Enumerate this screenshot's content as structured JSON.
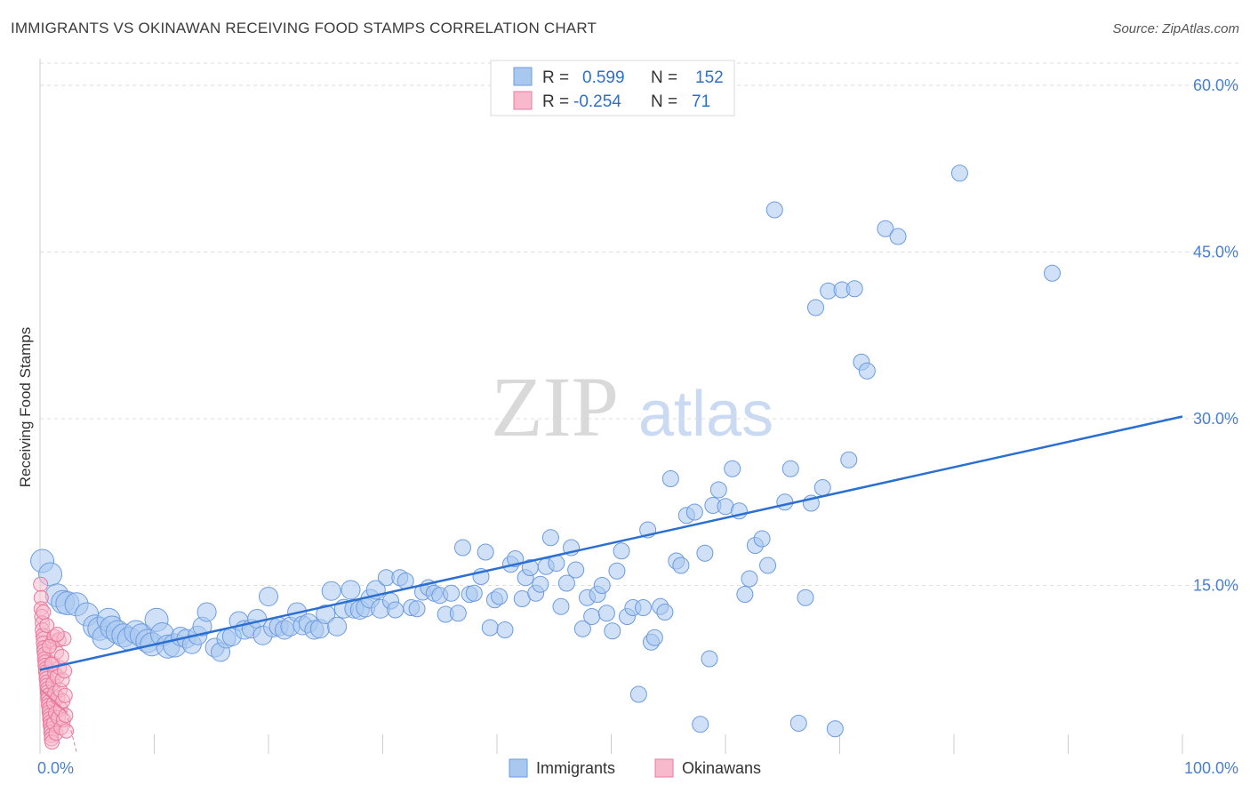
{
  "header": {
    "title": "IMMIGRANTS VS OKINAWAN RECEIVING FOOD STAMPS CORRELATION CHART",
    "source": "Source: ZipAtlas.com"
  },
  "watermark": {
    "zip": "ZIP",
    "atlas": "atlas"
  },
  "legend": {
    "rows": [
      {
        "r_label": "R =",
        "r_value": "0.599",
        "n_label": "N =",
        "n_value": "152",
        "color": "#a9c8f0"
      },
      {
        "r_label": "R =",
        "r_value": "-0.254",
        "n_label": "N =",
        "n_value": "71",
        "color": "#f7b9cc"
      }
    ]
  },
  "chart_data": {
    "type": "scatter",
    "title": "IMMIGRANTS VS OKINAWAN RECEIVING FOOD STAMPS CORRELATION CHART",
    "xlabel": "",
    "ylabel": "Receiving Food Stamps",
    "xlim": [
      0,
      100
    ],
    "ylim": [
      0,
      62
    ],
    "x_tick_labels": [
      "0.0%",
      "100.0%"
    ],
    "y_ticks": [
      15,
      30,
      45,
      60
    ],
    "y_tick_labels": [
      "15.0%",
      "30.0%",
      "45.0%",
      "60.0%"
    ],
    "grid": "horizontal dashed",
    "legend_position": "top-center",
    "colors": {
      "immigrants": "#6c9be0",
      "immigrants_fill": "#a9c8f0",
      "immigrants_line": "#2b6fd1",
      "okinawans": "#e87aa0",
      "okinawans_fill": "#f7b9cc"
    },
    "series": [
      {
        "name": "Immigrants",
        "trend": {
          "x": [
            0,
            100
          ],
          "y": [
            7.4,
            30.2
          ]
        },
        "points": [
          [
            0.2,
            17.2
          ],
          [
            0.9,
            16.0
          ],
          [
            1.5,
            14.1
          ],
          [
            2.0,
            13.5
          ],
          [
            2.4,
            13.4
          ],
          [
            3.2,
            13.3
          ],
          [
            4.1,
            12.4
          ],
          [
            4.8,
            11.3
          ],
          [
            5.2,
            11.1
          ],
          [
            5.6,
            10.3
          ],
          [
            6.0,
            11.9
          ],
          [
            6.3,
            11.2
          ],
          [
            6.8,
            10.8
          ],
          [
            7.3,
            10.5
          ],
          [
            7.8,
            10.2
          ],
          [
            8.4,
            10.8
          ],
          [
            8.9,
            10.5
          ],
          [
            9.4,
            10.0
          ],
          [
            9.8,
            9.7
          ],
          [
            10.2,
            11.9
          ],
          [
            10.7,
            10.6
          ],
          [
            11.2,
            9.5
          ],
          [
            11.8,
            9.6
          ],
          [
            12.3,
            10.4
          ],
          [
            12.8,
            10.2
          ],
          [
            13.3,
            9.7
          ],
          [
            13.8,
            10.5
          ],
          [
            14.2,
            11.3
          ],
          [
            14.6,
            12.6
          ],
          [
            15.3,
            9.4
          ],
          [
            15.8,
            9.0
          ],
          [
            16.3,
            10.2
          ],
          [
            16.8,
            10.4
          ],
          [
            17.4,
            11.8
          ],
          [
            17.9,
            11.0
          ],
          [
            18.5,
            11.1
          ],
          [
            19.0,
            12.0
          ],
          [
            19.5,
            10.5
          ],
          [
            20.0,
            14.0
          ],
          [
            20.4,
            11.2
          ],
          [
            20.9,
            11.3
          ],
          [
            21.4,
            11.0
          ],
          [
            21.9,
            11.3
          ],
          [
            22.5,
            12.6
          ],
          [
            23.0,
            11.4
          ],
          [
            23.5,
            11.6
          ],
          [
            24.0,
            11.0
          ],
          [
            24.5,
            11.1
          ],
          [
            25.0,
            12.4
          ],
          [
            25.5,
            14.5
          ],
          [
            26.0,
            11.3
          ],
          [
            26.6,
            12.9
          ],
          [
            27.2,
            14.6
          ],
          [
            27.5,
            12.9
          ],
          [
            28.0,
            12.8
          ],
          [
            28.5,
            13.0
          ],
          [
            28.9,
            13.8
          ],
          [
            29.4,
            14.6
          ],
          [
            29.8,
            12.9
          ],
          [
            30.3,
            15.7
          ],
          [
            30.7,
            13.6
          ],
          [
            31.1,
            12.8
          ],
          [
            31.5,
            15.7
          ],
          [
            32.0,
            15.4
          ],
          [
            32.5,
            13.0
          ],
          [
            33.0,
            12.9
          ],
          [
            33.5,
            14.4
          ],
          [
            34.0,
            14.8
          ],
          [
            34.5,
            14.3
          ],
          [
            35.0,
            14.1
          ],
          [
            35.5,
            12.4
          ],
          [
            36.0,
            14.3
          ],
          [
            36.6,
            12.5
          ],
          [
            37.0,
            18.4
          ],
          [
            37.6,
            14.2
          ],
          [
            38.0,
            14.3
          ],
          [
            38.6,
            15.8
          ],
          [
            39.0,
            18.0
          ],
          [
            39.4,
            11.2
          ],
          [
            39.8,
            13.7
          ],
          [
            40.2,
            14.0
          ],
          [
            40.7,
            11.0
          ],
          [
            41.2,
            16.9
          ],
          [
            41.6,
            17.4
          ],
          [
            42.2,
            13.8
          ],
          [
            42.5,
            15.7
          ],
          [
            42.9,
            16.6
          ],
          [
            43.4,
            14.3
          ],
          [
            43.8,
            15.1
          ],
          [
            44.3,
            16.7
          ],
          [
            44.7,
            19.3
          ],
          [
            45.2,
            17.0
          ],
          [
            45.6,
            13.1
          ],
          [
            46.1,
            15.2
          ],
          [
            46.5,
            18.4
          ],
          [
            46.9,
            16.4
          ],
          [
            47.5,
            11.1
          ],
          [
            47.9,
            13.9
          ],
          [
            48.3,
            12.2
          ],
          [
            48.8,
            14.2
          ],
          [
            49.2,
            15.0
          ],
          [
            49.6,
            12.5
          ],
          [
            50.1,
            10.9
          ],
          [
            50.5,
            16.3
          ],
          [
            50.9,
            18.1
          ],
          [
            51.4,
            12.2
          ],
          [
            51.9,
            13.0
          ],
          [
            52.4,
            5.2
          ],
          [
            52.8,
            13.0
          ],
          [
            53.2,
            20.0
          ],
          [
            53.5,
            9.9
          ],
          [
            53.8,
            10.3
          ],
          [
            54.3,
            13.1
          ],
          [
            54.7,
            12.6
          ],
          [
            55.2,
            24.6
          ],
          [
            55.7,
            17.2
          ],
          [
            56.1,
            16.8
          ],
          [
            56.6,
            21.3
          ],
          [
            57.3,
            21.6
          ],
          [
            57.8,
            2.5
          ],
          [
            58.2,
            17.9
          ],
          [
            58.6,
            8.4
          ],
          [
            58.9,
            22.2
          ],
          [
            59.4,
            23.6
          ],
          [
            60.0,
            22.1
          ],
          [
            60.6,
            25.5
          ],
          [
            61.2,
            21.7
          ],
          [
            61.7,
            14.2
          ],
          [
            62.1,
            15.6
          ],
          [
            62.6,
            18.6
          ],
          [
            63.2,
            19.2
          ],
          [
            63.7,
            16.8
          ],
          [
            64.3,
            48.8
          ],
          [
            65.2,
            22.5
          ],
          [
            65.7,
            25.5
          ],
          [
            66.4,
            2.6
          ],
          [
            67.0,
            13.9
          ],
          [
            67.5,
            22.4
          ],
          [
            67.9,
            40.0
          ],
          [
            68.5,
            23.8
          ],
          [
            69.0,
            41.5
          ],
          [
            69.6,
            2.1
          ],
          [
            70.2,
            41.6
          ],
          [
            70.8,
            26.3
          ],
          [
            71.3,
            41.7
          ],
          [
            71.9,
            35.1
          ],
          [
            72.4,
            34.3
          ],
          [
            74.0,
            47.1
          ],
          [
            75.1,
            46.4
          ],
          [
            80.5,
            52.1
          ],
          [
            88.6,
            43.1
          ]
        ]
      },
      {
        "name": "Okinawans",
        "trend": {
          "x": [
            0,
            2.3
          ],
          "y": [
            5.7,
            3.6
          ]
        },
        "trend_extended": {
          "x": [
            2.3,
            3.2
          ],
          "y": [
            3.6,
            0
          ]
        },
        "points": [
          [
            0.05,
            15.1
          ],
          [
            0.1,
            13.9
          ],
          [
            0.1,
            12.9
          ],
          [
            0.15,
            12.2
          ],
          [
            0.2,
            11.6
          ],
          [
            0.2,
            11.0
          ],
          [
            0.25,
            10.5
          ],
          [
            0.3,
            10.2
          ],
          [
            0.3,
            9.8
          ],
          [
            0.35,
            9.4
          ],
          [
            0.35,
            9.1
          ],
          [
            0.4,
            8.8
          ],
          [
            0.4,
            8.4
          ],
          [
            0.45,
            8.1
          ],
          [
            0.45,
            7.8
          ],
          [
            0.5,
            7.5
          ],
          [
            0.5,
            7.2
          ],
          [
            0.55,
            6.9
          ],
          [
            0.55,
            6.6
          ],
          [
            0.6,
            6.3
          ],
          [
            0.6,
            6.0
          ],
          [
            0.65,
            5.7
          ],
          [
            0.65,
            5.4
          ],
          [
            0.7,
            5.1
          ],
          [
            0.7,
            4.8
          ],
          [
            0.75,
            4.5
          ],
          [
            0.75,
            4.2
          ],
          [
            0.8,
            3.9
          ],
          [
            0.8,
            3.6
          ],
          [
            0.85,
            3.3
          ],
          [
            0.85,
            3.0
          ],
          [
            0.9,
            2.7
          ],
          [
            0.9,
            2.4
          ],
          [
            0.95,
            2.1
          ],
          [
            0.95,
            1.8
          ],
          [
            1.0,
            1.5
          ],
          [
            1.0,
            1.2
          ],
          [
            1.05,
            0.9
          ],
          [
            1.1,
            9.9
          ],
          [
            1.1,
            8.0
          ],
          [
            1.15,
            6.2
          ],
          [
            1.2,
            4.4
          ],
          [
            1.2,
            2.6
          ],
          [
            1.25,
            10.4
          ],
          [
            1.3,
            7.1
          ],
          [
            1.3,
            5.3
          ],
          [
            1.35,
            3.5
          ],
          [
            1.4,
            1.7
          ],
          [
            1.45,
            9.0
          ],
          [
            1.5,
            6.8
          ],
          [
            1.55,
            4.9
          ],
          [
            1.6,
            3.1
          ],
          [
            1.65,
            10.1
          ],
          [
            1.7,
            7.6
          ],
          [
            1.75,
            5.6
          ],
          [
            1.8,
            3.9
          ],
          [
            1.85,
            2.2
          ],
          [
            1.9,
            8.6
          ],
          [
            1.95,
            6.5
          ],
          [
            2.0,
            4.6
          ],
          [
            2.05,
            2.9
          ],
          [
            2.1,
            10.2
          ],
          [
            2.15,
            7.3
          ],
          [
            2.2,
            5.1
          ],
          [
            2.25,
            3.3
          ],
          [
            2.3,
            1.9
          ],
          [
            1.0,
            7.9
          ],
          [
            0.6,
            11.4
          ],
          [
            0.3,
            12.6
          ],
          [
            0.8,
            9.5
          ],
          [
            1.5,
            10.6
          ]
        ]
      }
    ]
  },
  "bottom_legend": {
    "items": [
      {
        "label": "Immigrants",
        "color": "#a9c8f0"
      },
      {
        "label": "Okinawans",
        "color": "#f7b9cc"
      }
    ]
  }
}
